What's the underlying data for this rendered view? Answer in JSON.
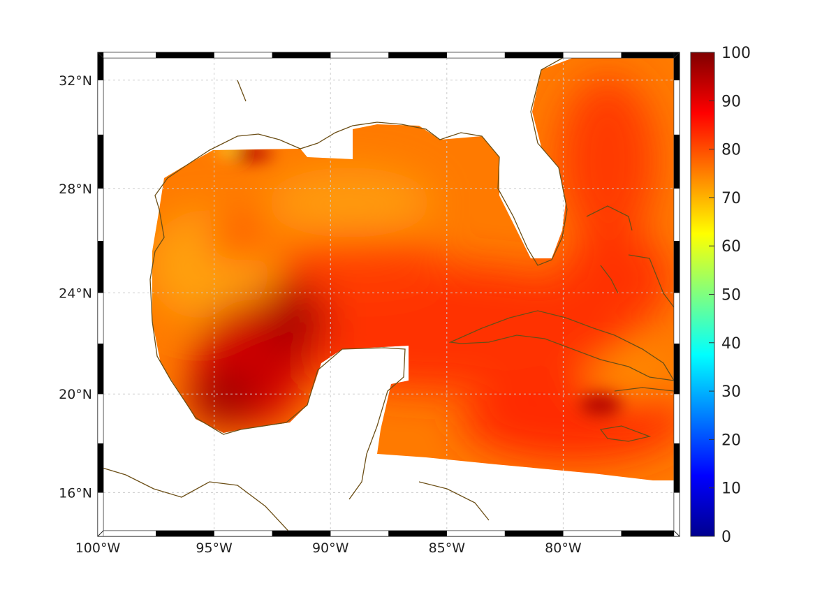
{
  "chart_data": {
    "type": "heatmap",
    "title": "",
    "region": "Gulf of Mexico / Caribbean",
    "x_ticks": [
      "100°W",
      "95°W",
      "90°W",
      "85°W",
      "80°W"
    ],
    "x_tick_values": [
      -100,
      -95,
      -90,
      -85,
      -80
    ],
    "y_ticks": [
      "32°N",
      "28°N",
      "24°N",
      "20°N",
      "16°N"
    ],
    "y_tick_values": [
      32,
      28,
      24,
      20,
      16
    ],
    "xlim": [
      -100,
      -75
    ],
    "ylim": [
      14.2,
      33
    ],
    "colorbar": {
      "ticks": [
        "0",
        "10",
        "20",
        "30",
        "40",
        "50",
        "60",
        "70",
        "80",
        "90",
        "100"
      ],
      "values": [
        0,
        10,
        20,
        30,
        40,
        50,
        60,
        70,
        80,
        90,
        100
      ],
      "range": [
        0,
        100
      ],
      "colormap": "jet"
    },
    "grid": true,
    "field_summary": "values mostly 70-100; highest (~95-100) in SW Gulf of Mexico, ~75 in western/northern Gulf"
  },
  "colors": {
    "coast": "#6b4e16",
    "grid": "#cccccc"
  }
}
